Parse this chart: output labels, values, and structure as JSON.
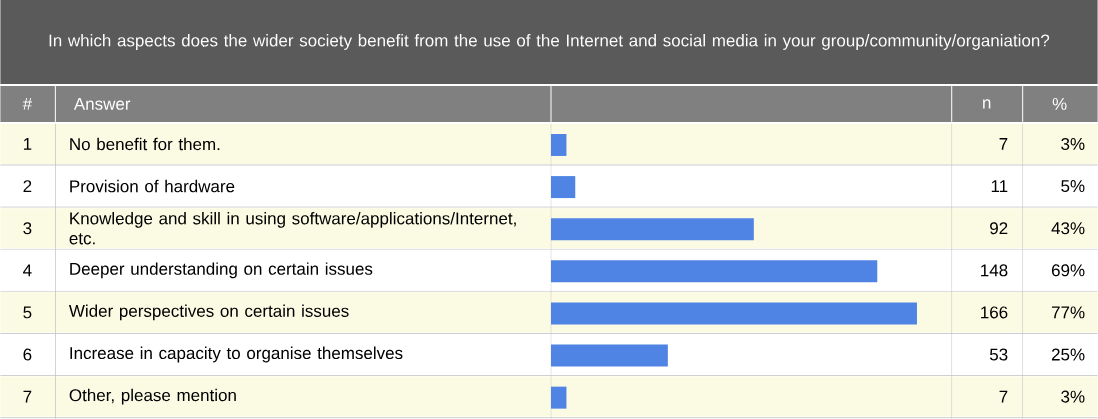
{
  "chart_data": {
    "type": "bar",
    "orientation": "horizontal",
    "title": "In which aspects does the wider society benefit from the use of the Internet and social media in your group/community/organiation?",
    "categories": [
      "No benefit for them.",
      "Provision of hardware",
      "Knowledge and skill in using software/applications/Internet, etc.",
      "Deeper understanding on certain issues",
      "Wider perspectives on certain issues",
      "Increase in capacity to organise themselves",
      "Other, please mention"
    ],
    "values": [
      7,
      11,
      92,
      148,
      166,
      53,
      7
    ],
    "color": "#4f84e4",
    "data_labels": true,
    "annotations": [
      "#",
      "Answer",
      "n",
      "%",
      "1",
      "2",
      "3",
      "4",
      "5",
      "6",
      "7",
      "3%",
      "5%",
      "43%",
      "69%",
      "77%",
      "25%",
      "3%"
    ]
  }
}
